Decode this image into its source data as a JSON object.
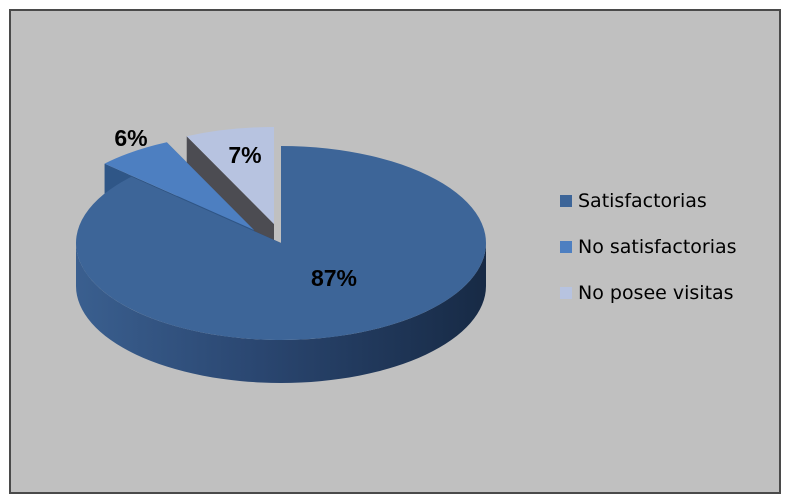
{
  "chart_data": {
    "type": "pie",
    "style": "3d-exploded",
    "legend_position": "right",
    "slices": [
      {
        "name": "Satisfactorias",
        "value": 87,
        "label": "87%",
        "color": "#3d6598",
        "dark": "#233a5a"
      },
      {
        "name": "No satisfactorias",
        "value": 6,
        "label": "6%",
        "color": "#4d7fc1",
        "dark": "#2f5687"
      },
      {
        "name": "No posee visitas",
        "value": 7,
        "label": "7%",
        "color": "#b7c3e0",
        "dark": "#4c4c52"
      }
    ]
  },
  "colors": {
    "chart_background": "#c0c0c0",
    "frame_border": "#4a4a4a"
  }
}
